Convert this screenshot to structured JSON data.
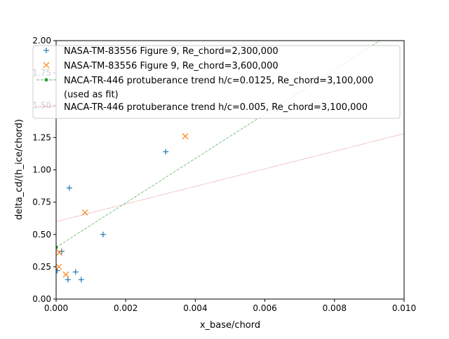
{
  "chart_data": {
    "type": "scatter",
    "title": "",
    "xlabel": "x_base/chord",
    "ylabel": "delta_cd/(h_ice/chord)",
    "xlim": [
      0,
      0.01
    ],
    "ylim": [
      0,
      2.0
    ],
    "xticks": [
      0,
      0.002,
      0.004,
      0.006,
      0.008,
      0.01
    ],
    "xtick_labels": [
      "0.000",
      "0.002",
      "0.004",
      "0.006",
      "0.008",
      "0.010"
    ],
    "yticks": [
      0,
      0.25,
      0.5,
      0.75,
      1.0,
      1.25,
      1.5,
      1.75,
      2.0
    ],
    "ytick_labels": [
      "0.00",
      "0.25",
      "0.50",
      "0.75",
      "1.00",
      "1.25",
      "1.50",
      "1.75",
      "2.00"
    ],
    "grid": false,
    "legend_placement": "upper-left",
    "series": [
      {
        "name": "NASA-TM-83556 Figure 9, Re_chord=2,300,000",
        "kind": "scatter",
        "marker": "plus",
        "color": "#1f77b4",
        "x": [
          3e-05,
          0.00016,
          0.00038,
          0.00034,
          0.00056,
          0.00072,
          0.00135,
          0.00315
        ],
        "y": [
          0.22,
          0.37,
          0.86,
          0.15,
          0.21,
          0.15,
          0.5,
          1.14
        ]
      },
      {
        "name": "NASA-TM-83556 Figure 9, Re_chord=3,600,000",
        "kind": "scatter",
        "marker": "x",
        "color": "#ff7f0e",
        "x": [
          9e-05,
          8e-05,
          0.00028,
          0.00083,
          0.00371
        ],
        "y": [
          0.36,
          0.25,
          0.19,
          0.67,
          1.26
        ]
      },
      {
        "name": "NACA-TR-446 protuberance trend h/c=0.0125, Re_chord=3,100,000",
        "name_line2": "(used as fit)",
        "kind": "line",
        "style": "dashed",
        "marker": "dot",
        "color": "#2ca02c",
        "x": [
          0,
          0.01
        ],
        "y": [
          0.4,
          2.12
        ],
        "marker_x": [
          0
        ],
        "marker_y": [
          0.4
        ]
      },
      {
        "name": "NACA-TR-446 protuberance trend h/c=0.005, Re_chord=3,100,000",
        "kind": "line",
        "style": "dotted",
        "color": "#d62728",
        "x": [
          0,
          0.01
        ],
        "y": [
          0.6,
          1.28
        ]
      }
    ]
  }
}
